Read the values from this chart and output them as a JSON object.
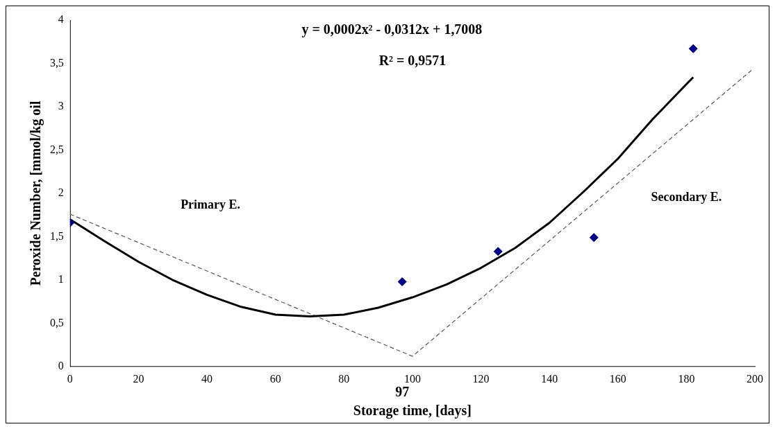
{
  "chart_data": {
    "type": "scatter",
    "xlabel": "Storage time, [days]",
    "ylabel": "Peroxide Number, [mmol/kg oil",
    "xlim": [
      0,
      200
    ],
    "xticks": [
      0,
      20,
      40,
      60,
      80,
      100,
      120,
      140,
      160,
      180,
      200
    ],
    "ylim": [
      0,
      4
    ],
    "yticks": [
      0,
      {
        "value": 0.5,
        "label": "0,5"
      },
      1,
      {
        "value": 1.5,
        "label": "1,5"
      },
      2,
      {
        "value": 2.5,
        "label": "2,5"
      },
      3,
      {
        "value": 3.5,
        "label": "3,5"
      },
      4
    ],
    "grid": false,
    "legend": false,
    "series": [
      {
        "color": "#00008b",
        "marker": "diamond",
        "x": [
          0,
          97,
          125,
          153,
          182
        ],
        "values": [
          1.66,
          0.98,
          1.33,
          1.49,
          3.67
        ]
      },
      {
        "type": "line",
        "color": "#000000",
        "marker": "none",
        "line_style": "solid",
        "x": [
          0,
          10,
          20,
          30,
          40,
          50,
          60,
          70,
          80,
          90,
          100,
          110,
          120,
          130,
          140,
          150,
          160,
          170,
          180,
          182
        ],
        "values": [
          1.7,
          1.45,
          1.21,
          1.0,
          0.83,
          0.69,
          0.6,
          0.58,
          0.6,
          0.68,
          0.8,
          0.95,
          1.14,
          1.37,
          1.66,
          2.02,
          2.4,
          2.85,
          3.26,
          3.34
        ]
      },
      {
        "type": "line",
        "color": "#555555",
        "marker": "none",
        "line_style": "dashed",
        "x": [
          0,
          100,
          199
        ],
        "values": [
          1.76,
          0.12,
          3.42
        ]
      }
    ],
    "annotations": [
      "y = 0,0002x² - 0,0312x + 1,7008",
      "R² = 0,9571",
      "Primary E.",
      "Secondary E.",
      "97"
    ]
  }
}
